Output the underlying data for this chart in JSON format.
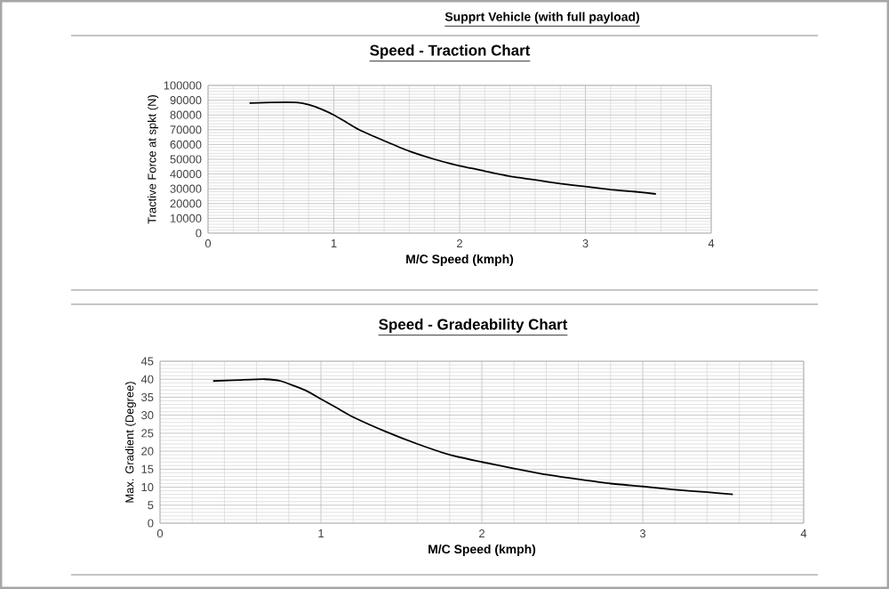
{
  "chart_data": [
    {
      "type": "line",
      "title": "Speed - Traction Chart",
      "annotations": [
        "Supprt Vehicle (with full payload)"
      ],
      "xlabel": "M/C Speed (kmph)",
      "ylabel": "Tractive Force at spkt (N)",
      "xlim": [
        0,
        4
      ],
      "xticks": [
        0,
        1,
        2,
        3,
        4
      ],
      "ylim": [
        0,
        100000
      ],
      "yticks": [
        0,
        10000,
        20000,
        30000,
        40000,
        50000,
        60000,
        70000,
        80000,
        90000,
        100000
      ],
      "grid": true,
      "color": "#000000",
      "x": [
        0.33,
        0.5,
        0.7,
        0.8,
        0.9,
        1.0,
        1.1,
        1.2,
        1.4,
        1.6,
        1.8,
        2.0,
        2.2,
        2.4,
        2.6,
        2.8,
        3.0,
        3.2,
        3.4,
        3.56
      ],
      "values": [
        88000,
        88500,
        88500,
        87000,
        84000,
        80000,
        75000,
        70000,
        62500,
        55500,
        50000,
        45500,
        42000,
        38500,
        36000,
        33500,
        31500,
        29500,
        28000,
        26500
      ]
    },
    {
      "type": "line",
      "title": "Speed - Gradeability Chart",
      "xlabel": "M/C Speed (kmph)",
      "ylabel": "Max. Gradient (Degree)",
      "xlim": [
        0,
        4
      ],
      "xticks": [
        0,
        1,
        2,
        3,
        4
      ],
      "ylim": [
        0,
        45
      ],
      "yticks": [
        0,
        5,
        10,
        15,
        20,
        25,
        30,
        35,
        40,
        45
      ],
      "grid": true,
      "color": "#000000",
      "x": [
        0.33,
        0.5,
        0.65,
        0.75,
        0.9,
        1.0,
        1.1,
        1.2,
        1.4,
        1.6,
        1.8,
        2.0,
        2.2,
        2.4,
        2.6,
        2.8,
        3.0,
        3.2,
        3.4,
        3.56
      ],
      "values": [
        39.5,
        39.8,
        40,
        39.5,
        37,
        34.5,
        32,
        29.5,
        25.5,
        22,
        19,
        17,
        15.2,
        13.5,
        12.2,
        11,
        10.2,
        9.3,
        8.6,
        8
      ]
    }
  ]
}
